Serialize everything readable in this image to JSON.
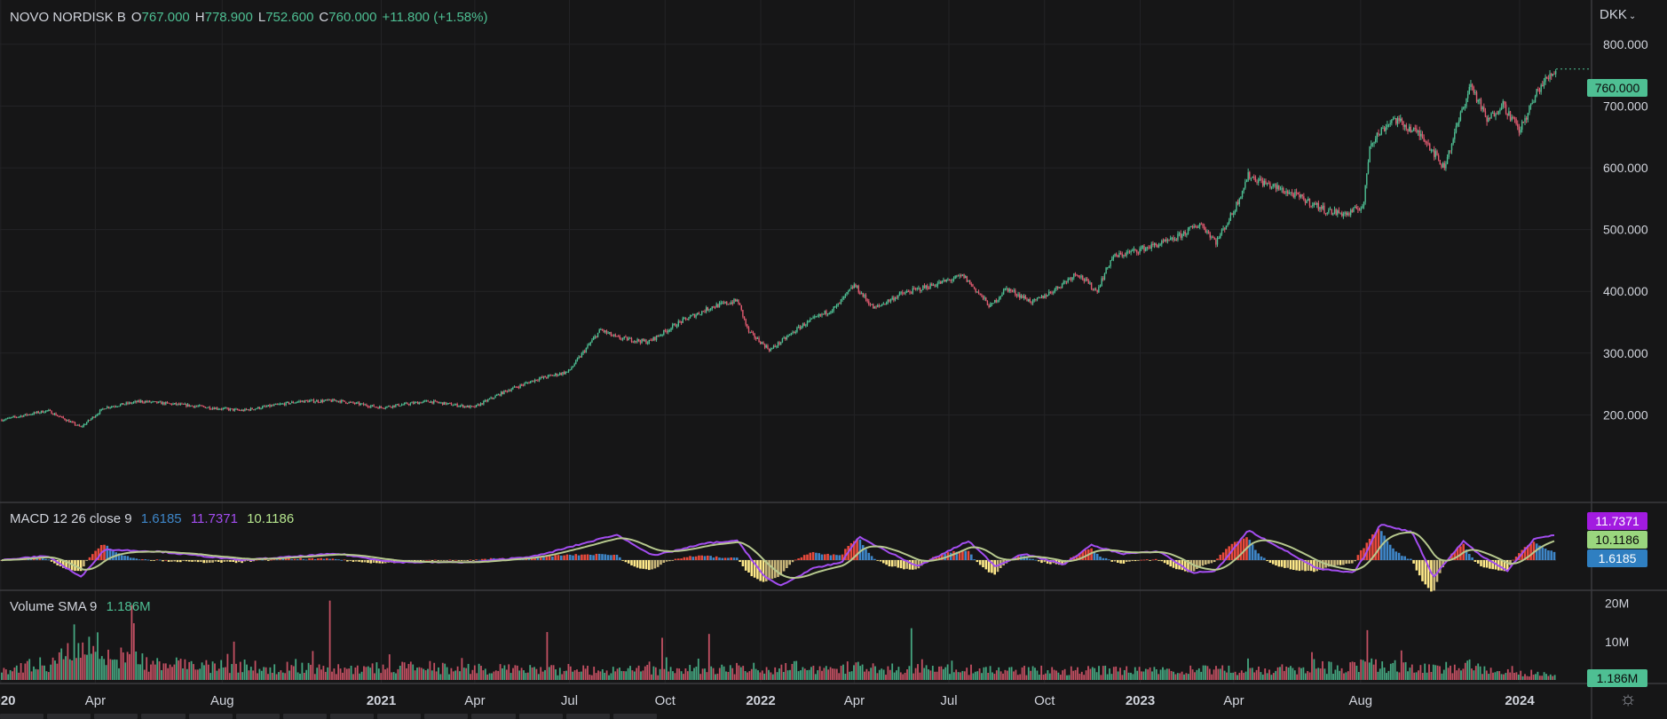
{
  "header": {
    "symbol": "NOVO NORDISK B",
    "o_label": "O",
    "o_value": "767.000",
    "h_label": "H",
    "h_value": "778.900",
    "l_label": "L",
    "l_value": "752.600",
    "c_label": "C",
    "c_value": "760.000",
    "change": "+11.800 (+1.58%)"
  },
  "currency": "DKK",
  "price_tag": "760.000",
  "macd_legend": {
    "label": "MACD 12 26 close 9",
    "histogram": "1.6185",
    "macd": "11.7371",
    "signal": "10.1186"
  },
  "macd_tags": {
    "macd": "11.7371",
    "signal": "10.1186",
    "histogram": "1.6185"
  },
  "volume_legend": {
    "label": "Volume SMA 9",
    "value": "1.186M"
  },
  "volume_tag": "1.186M",
  "colors": {
    "up": "#4ebf93",
    "down": "#e05a70",
    "macd": "#a34df0",
    "signal": "#b6c88e",
    "hist_up": "#e84a3c",
    "hist_down": "#ffe98a",
    "hist_blue": "#3e86c8",
    "bg": "#161617",
    "grid": "#232326"
  },
  "chart_data": [
    {
      "type": "candlestick",
      "title": "NOVO NORDISK B",
      "xlabel": "",
      "ylabel": "",
      "x_ticks": [
        "2020",
        "Apr",
        "Aug",
        "2021",
        "Apr",
        "Jul",
        "Oct",
        "2022",
        "Apr",
        "Jul",
        "Oct",
        "2023",
        "Apr",
        "Aug",
        "2024"
      ],
      "y_ticks": [
        "200.000",
        "300.000",
        "400.000",
        "500.000",
        "600.000",
        "700.000",
        "800.000"
      ],
      "ylim": [
        110,
        820
      ],
      "grid": true,
      "close_series": {
        "x": [
          "2020-01-02",
          "2020-02-15",
          "2020-03-18",
          "2020-04-10",
          "2020-05-15",
          "2020-07-01",
          "2020-08-20",
          "2020-10-15",
          "2020-11-20",
          "2020-12-31",
          "2021-02-15",
          "2021-03-31",
          "2021-04-30",
          "2021-05-31",
          "2021-06-30",
          "2021-07-31",
          "2021-08-15",
          "2021-09-15",
          "2021-10-15",
          "2021-11-15",
          "2021-12-10",
          "2021-12-20",
          "2022-01-10",
          "2022-02-10",
          "2022-03-15",
          "2022-04-01",
          "2022-04-20",
          "2022-05-15",
          "2022-06-15",
          "2022-07-15",
          "2022-08-10",
          "2022-08-25",
          "2022-09-20",
          "2022-10-10",
          "2022-11-01",
          "2022-11-20",
          "2022-12-05",
          "2023-01-01",
          "2023-01-31",
          "2023-02-28",
          "2023-03-15",
          "2023-04-01",
          "2023-04-15",
          "2023-05-01",
          "2023-05-31",
          "2023-06-30",
          "2023-07-20",
          "2023-08-04",
          "2023-08-10",
          "2023-09-01",
          "2023-10-01",
          "2023-10-20",
          "2023-11-08",
          "2023-11-15",
          "2023-12-01",
          "2023-12-15",
          "2024-01-01",
          "2024-01-20",
          "2024-02-05"
        ],
        "y": [
          192,
          207,
          180,
          212,
          222,
          215,
          207,
          222,
          223,
          212,
          222,
          212,
          238,
          258,
          270,
          338,
          325,
          318,
          350,
          375,
          385,
          335,
          305,
          345,
          375,
          410,
          372,
          395,
          410,
          425,
          375,
          405,
          382,
          402,
          430,
          400,
          455,
          468,
          482,
          510,
          480,
          530,
          588,
          575,
          555,
          530,
          525,
          540,
          640,
          680,
          650,
          600,
          700,
          735,
          675,
          705,
          660,
          730,
          760
        ]
      }
    },
    {
      "type": "line",
      "title": "MACD 12 26 close 9",
      "series": [
        {
          "name": "MACD",
          "color": "#a34df0"
        },
        {
          "name": "Signal",
          "color": "#b6c88e"
        },
        {
          "name": "Histogram",
          "color": "#e84a3c"
        }
      ],
      "macd_series": {
        "x": [
          "2020-01-02",
          "2020-02-15",
          "2020-03-18",
          "2020-04-10",
          "2020-06-01",
          "2020-08-20",
          "2020-11-20",
          "2021-01-15",
          "2021-03-31",
          "2021-05-31",
          "2021-07-31",
          "2021-08-15",
          "2021-09-20",
          "2021-11-10",
          "2021-12-10",
          "2022-01-05",
          "2022-01-20",
          "2022-02-20",
          "2022-03-20",
          "2022-04-05",
          "2022-04-25",
          "2022-06-01",
          "2022-07-20",
          "2022-08-15",
          "2022-09-10",
          "2022-10-20",
          "2022-11-15",
          "2022-12-15",
          "2023-01-20",
          "2023-02-20",
          "2023-03-15",
          "2023-04-15",
          "2023-05-15",
          "2023-06-20",
          "2023-07-25",
          "2023-08-05",
          "2023-08-20",
          "2023-09-20",
          "2023-10-10",
          "2023-11-08",
          "2023-11-25",
          "2023-12-20",
          "2024-01-15",
          "2024-02-05"
        ],
        "y": [
          0,
          2,
          -8,
          5,
          4,
          0,
          3,
          -1,
          -1,
          2,
          10,
          12,
          2,
          8,
          9,
          -8,
          -12,
          -4,
          -1,
          11,
          6,
          -3,
          9,
          -3,
          3,
          -2,
          7,
          3,
          4,
          -6,
          -5,
          14,
          6,
          -4,
          -6,
          2,
          17,
          13,
          -8,
          9,
          2,
          -5,
          10,
          11.74
        ]
      },
      "ylim": [
        -15,
        20
      ],
      "final_values": {
        "macd": 11.7371,
        "signal": 10.1186,
        "histogram": 1.6185
      }
    },
    {
      "type": "bar",
      "title": "Volume SMA 9",
      "y_ticks": [
        "10M",
        "20M"
      ],
      "ylim": [
        0,
        22
      ],
      "yunit": "M",
      "volume_profile": {
        "x": [
          "2020-01-02",
          "2020-02-20",
          "2020-03-15",
          "2020-04-15",
          "2020-06-01",
          "2020-09-01",
          "2020-11-15",
          "2021-01-15",
          "2021-06-01",
          "2021-09-01",
          "2022-01-01",
          "2022-03-01",
          "2022-06-01",
          "2022-09-01",
          "2023-01-01",
          "2023-05-01",
          "2023-08-07",
          "2023-09-15",
          "2023-11-15",
          "2024-02-05"
        ],
        "avg_m": [
          3.0,
          4.5,
          9.0,
          6.5,
          4.0,
          3.5,
          3.0,
          3.2,
          2.6,
          2.5,
          3.2,
          3.4,
          2.8,
          2.6,
          2.5,
          2.6,
          4.0,
          3.2,
          3.6,
          1.186
        ]
      },
      "peaks": [
        {
          "x": "2020-03-12",
          "y": 14.5
        },
        {
          "x": "2020-05-05",
          "y": 19.5
        },
        {
          "x": "2020-11-13",
          "y": 20.7
        },
        {
          "x": "2021-06-10",
          "y": 12.5
        },
        {
          "x": "2021-09-29",
          "y": 11.0
        },
        {
          "x": "2021-11-12",
          "y": 12.0
        },
        {
          "x": "2022-05-25",
          "y": 13.5
        },
        {
          "x": "2023-08-07",
          "y": 13.0
        }
      ],
      "sma_value": "1.186M"
    }
  ]
}
